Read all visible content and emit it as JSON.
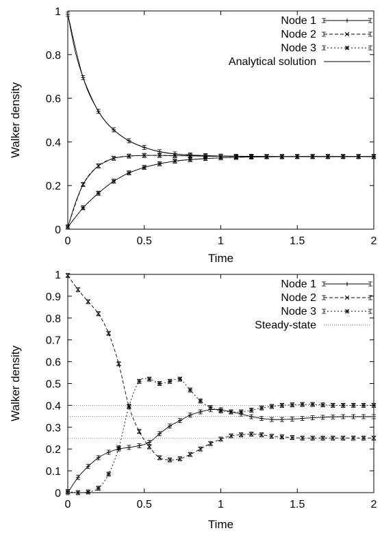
{
  "chart_data": [
    {
      "type": "line",
      "xlabel": "Time",
      "ylabel": "Walker density",
      "xlim": [
        0,
        2
      ],
      "ylim": [
        0,
        1
      ],
      "xticks": [
        0,
        0.5,
        1,
        1.5,
        2
      ],
      "xtick_labels": [
        "0",
        "0.5",
        "1",
        "1.5",
        "2"
      ],
      "yticks": [
        0,
        0.2,
        0.4,
        0.6,
        0.8,
        1
      ],
      "ytick_labels": [
        "0",
        "0.2",
        "0.4",
        "0.6",
        "0.8",
        "1"
      ],
      "legend_position": "top-right",
      "series": [
        {
          "name": "Node 1",
          "marker": "plus",
          "dash": "",
          "errorbars": true,
          "x": [
            0,
            0.1,
            0.2,
            0.3,
            0.4,
            0.5,
            0.6,
            0.7,
            0.8,
            0.9,
            1.0,
            1.1,
            1.2,
            1.3,
            1.4,
            1.5,
            1.6,
            1.7,
            1.8,
            1.9,
            2.0
          ],
          "y": [
            0.985,
            0.695,
            0.54,
            0.455,
            0.405,
            0.375,
            0.355,
            0.345,
            0.34,
            0.337,
            0.335,
            0.334,
            0.334,
            0.333,
            0.333,
            0.333,
            0.333,
            0.333,
            0.333,
            0.333,
            0.333
          ]
        },
        {
          "name": "Node 2",
          "marker": "cross",
          "dash": "5,3",
          "errorbars": true,
          "x": [
            0,
            0.1,
            0.2,
            0.3,
            0.4,
            0.5,
            0.6,
            0.7,
            0.8,
            0.9,
            1.0,
            1.1,
            1.2,
            1.3,
            1.4,
            1.5,
            1.6,
            1.7,
            1.8,
            1.9,
            2.0
          ],
          "y": [
            0.01,
            0.205,
            0.29,
            0.325,
            0.335,
            0.338,
            0.338,
            0.337,
            0.336,
            0.335,
            0.334,
            0.333,
            0.333,
            0.333,
            0.333,
            0.333,
            0.333,
            0.333,
            0.333,
            0.333,
            0.333
          ]
        },
        {
          "name": "Node 3",
          "marker": "star",
          "dash": "2,3",
          "errorbars": true,
          "x": [
            0,
            0.1,
            0.2,
            0.3,
            0.4,
            0.5,
            0.6,
            0.7,
            0.8,
            0.9,
            1.0,
            1.1,
            1.2,
            1.3,
            1.4,
            1.5,
            1.6,
            1.7,
            1.8,
            1.9,
            2.0
          ],
          "y": [
            0.01,
            0.098,
            0.165,
            0.22,
            0.258,
            0.283,
            0.3,
            0.312,
            0.319,
            0.324,
            0.327,
            0.329,
            0.331,
            0.332,
            0.332,
            0.333,
            0.333,
            0.333,
            0.333,
            0.333,
            0.333
          ]
        },
        {
          "name": "Analytical solution",
          "marker": "none",
          "dash": "",
          "errorbars": false,
          "x": [
            0,
            0.05,
            0.1,
            0.15,
            0.2,
            0.25,
            0.3,
            0.35,
            0.4,
            0.45,
            0.5,
            0.6,
            0.7,
            0.8,
            0.9,
            1.0,
            1.2,
            1.4,
            1.6,
            1.8,
            2.0
          ],
          "y": [
            0.985,
            0.81,
            0.695,
            0.61,
            0.54,
            0.49,
            0.455,
            0.427,
            0.405,
            0.388,
            0.375,
            0.355,
            0.345,
            0.34,
            0.337,
            0.335,
            0.334,
            0.333,
            0.333,
            0.333,
            0.333
          ],
          "extra_curves": [
            {
              "x": [
                0,
                0.05,
                0.1,
                0.15,
                0.2,
                0.25,
                0.3,
                0.35,
                0.4,
                0.5,
                0.6,
                0.7,
                0.8,
                1.0,
                1.2,
                1.4,
                1.6,
                1.8,
                2.0
              ],
              "y": [
                0.01,
                0.12,
                0.205,
                0.255,
                0.29,
                0.31,
                0.325,
                0.331,
                0.335,
                0.338,
                0.338,
                0.337,
                0.336,
                0.334,
                0.333,
                0.333,
                0.333,
                0.333,
                0.333
              ]
            },
            {
              "x": [
                0,
                0.05,
                0.1,
                0.15,
                0.2,
                0.25,
                0.3,
                0.35,
                0.4,
                0.5,
                0.6,
                0.7,
                0.8,
                1.0,
                1.2,
                1.4,
                1.6,
                1.8,
                2.0
              ],
              "y": [
                0.01,
                0.055,
                0.098,
                0.133,
                0.165,
                0.194,
                0.22,
                0.24,
                0.258,
                0.283,
                0.3,
                0.312,
                0.319,
                0.327,
                0.331,
                0.332,
                0.333,
                0.333,
                0.333
              ]
            }
          ]
        }
      ]
    },
    {
      "type": "line",
      "xlabel": "Time",
      "ylabel": "Walker density",
      "xlim": [
        0,
        2
      ],
      "ylim": [
        0,
        1
      ],
      "xticks": [
        0,
        0.5,
        1,
        1.5,
        2
      ],
      "xtick_labels": [
        "0",
        "0.5",
        "1",
        "1.5",
        "2"
      ],
      "yticks": [
        0,
        0.1,
        0.2,
        0.3,
        0.4,
        0.5,
        0.6,
        0.7,
        0.8,
        0.9,
        1
      ],
      "ytick_labels": [
        "0",
        "0.1",
        "0.2",
        "0.3",
        "0.4",
        "0.5",
        "0.6",
        "0.7",
        "0.8",
        "0.9",
        "1"
      ],
      "legend_position": "top-right",
      "series": [
        {
          "name": "Node 1",
          "marker": "plus",
          "dash": "",
          "errorbars": true,
          "x": [
            0,
            0.067,
            0.133,
            0.2,
            0.267,
            0.333,
            0.4,
            0.467,
            0.533,
            0.6,
            0.667,
            0.733,
            0.8,
            0.867,
            0.933,
            1.0,
            1.067,
            1.133,
            1.2,
            1.267,
            1.333,
            1.4,
            1.467,
            1.533,
            1.6,
            1.667,
            1.733,
            1.8,
            1.867,
            1.933,
            2.0
          ],
          "y": [
            0.0,
            0.07,
            0.12,
            0.16,
            0.185,
            0.2,
            0.207,
            0.215,
            0.23,
            0.27,
            0.305,
            0.33,
            0.355,
            0.37,
            0.38,
            0.38,
            0.37,
            0.36,
            0.348,
            0.34,
            0.335,
            0.335,
            0.337,
            0.34,
            0.343,
            0.345,
            0.347,
            0.348,
            0.348,
            0.348,
            0.348
          ]
        },
        {
          "name": "Node 2",
          "marker": "cross",
          "dash": "5,3",
          "errorbars": true,
          "x": [
            0,
            0.067,
            0.133,
            0.2,
            0.267,
            0.333,
            0.4,
            0.467,
            0.533,
            0.6,
            0.667,
            0.733,
            0.8,
            0.867,
            0.933,
            1.0,
            1.067,
            1.133,
            1.2,
            1.267,
            1.333,
            1.4,
            1.467,
            1.533,
            1.6,
            1.667,
            1.733,
            1.8,
            1.867,
            1.933,
            2.0
          ],
          "y": [
            0.995,
            0.93,
            0.875,
            0.82,
            0.73,
            0.59,
            0.395,
            0.28,
            0.21,
            0.16,
            0.15,
            0.155,
            0.175,
            0.2,
            0.225,
            0.245,
            0.26,
            0.265,
            0.268,
            0.265,
            0.258,
            0.255,
            0.252,
            0.25,
            0.25,
            0.25,
            0.25,
            0.25,
            0.25,
            0.25,
            0.25
          ]
        },
        {
          "name": "Node 3",
          "marker": "star",
          "dash": "2,3",
          "errorbars": true,
          "x": [
            0,
            0.067,
            0.133,
            0.2,
            0.267,
            0.333,
            0.4,
            0.467,
            0.533,
            0.6,
            0.667,
            0.733,
            0.8,
            0.867,
            0.933,
            1.0,
            1.067,
            1.133,
            1.2,
            1.267,
            1.333,
            1.4,
            1.467,
            1.533,
            1.6,
            1.667,
            1.733,
            1.8,
            1.867,
            1.933,
            2.0
          ],
          "y": [
            0.005,
            0.0,
            0.003,
            0.02,
            0.085,
            0.205,
            0.395,
            0.51,
            0.52,
            0.5,
            0.51,
            0.52,
            0.47,
            0.42,
            0.39,
            0.375,
            0.37,
            0.37,
            0.378,
            0.388,
            0.395,
            0.4,
            0.402,
            0.404,
            0.404,
            0.402,
            0.4,
            0.4,
            0.4,
            0.4,
            0.4
          ]
        },
        {
          "name": "Steady-state",
          "marker": "none",
          "dash": "1,2",
          "errorbars": false,
          "hlines": [
            0.4,
            0.35,
            0.25
          ]
        }
      ]
    }
  ]
}
